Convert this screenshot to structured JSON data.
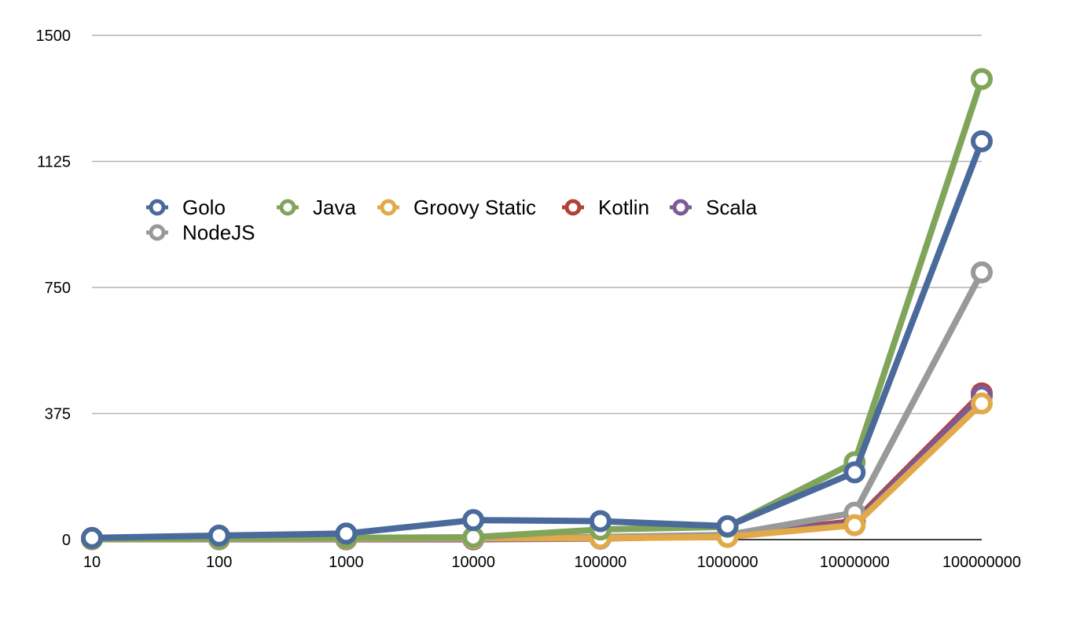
{
  "chart_data": {
    "type": "line",
    "title": "",
    "xlabel": "",
    "ylabel": "",
    "categories": [
      "10",
      "100",
      "1000",
      "10000",
      "100000",
      "1000000",
      "10000000",
      "100000000"
    ],
    "ylim": [
      0,
      1500
    ],
    "yticks": [
      0,
      375,
      750,
      1125,
      1500
    ],
    "grid": true,
    "legend_position": "top-left",
    "series": [
      {
        "name": "Kotlin",
        "color": "#b3413b",
        "values": [
          1,
          2,
          3,
          4,
          5,
          12,
          55,
          435
        ]
      },
      {
        "name": "Scala",
        "color": "#7d5a94",
        "values": [
          1,
          1,
          1,
          1,
          3,
          11,
          50,
          428
        ]
      },
      {
        "name": "NodeJS",
        "color": "#999999",
        "values": [
          2,
          3,
          3,
          4,
          8,
          14,
          80,
          795
        ]
      },
      {
        "name": "Groovy Static",
        "color": "#e1a94a",
        "values": [
          1,
          2,
          3,
          4,
          4,
          8,
          43,
          405
        ]
      },
      {
        "name": "Java",
        "color": "#80a55a",
        "values": [
          2,
          3,
          5,
          7,
          30,
          38,
          230,
          1370
        ]
      },
      {
        "name": "Golo",
        "color": "#4a6a9c",
        "values": [
          5,
          12,
          18,
          58,
          55,
          40,
          200,
          1185
        ]
      }
    ],
    "legend_order": [
      "Golo",
      "Java",
      "Groovy Static",
      "Kotlin",
      "Scala",
      "NodeJS"
    ]
  }
}
